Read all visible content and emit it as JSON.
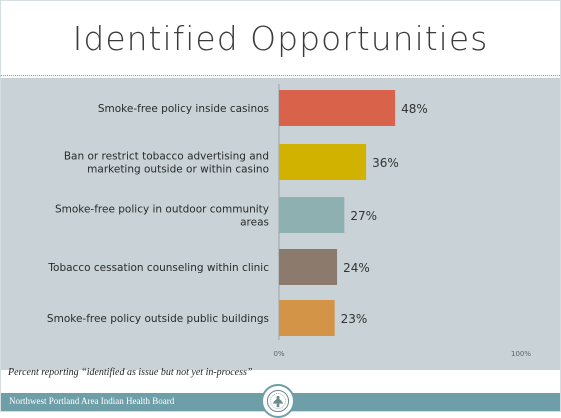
{
  "slide": {
    "title": "Identified Opportunities",
    "caption": "Percent reporting “identified as issue but not yet in-process”",
    "footer": "Northwest Portland Area Indian Health Board",
    "logo": "seal-logo"
  },
  "colors": {
    "panel": "#c9d3d7",
    "footer": "#6e9ea7",
    "bars": [
      "#d9634a",
      "#d2b200",
      "#8fb0b0",
      "#8c7a6c",
      "#d49448"
    ]
  },
  "chart_data": {
    "type": "bar",
    "orientation": "horizontal",
    "categories": [
      [
        "Smoke-free policy inside casinos"
      ],
      [
        "Ban or restrict tobacco advertising and",
        "marketing outside or within casino"
      ],
      [
        "Smoke-free policy in outdoor community",
        "areas"
      ],
      [
        "Tobacco cessation counseling within clinic"
      ],
      [
        "Smoke-free policy outside public buildings"
      ]
    ],
    "values": [
      48,
      36,
      27,
      24,
      23
    ],
    "value_labels": [
      "48%",
      "36%",
      "27%",
      "24%",
      "23%"
    ],
    "xlim": [
      0,
      100
    ],
    "x_ticks": [
      0,
      100
    ],
    "x_tick_labels": [
      "0%",
      "100%"
    ],
    "grid": false,
    "legend": "none"
  }
}
